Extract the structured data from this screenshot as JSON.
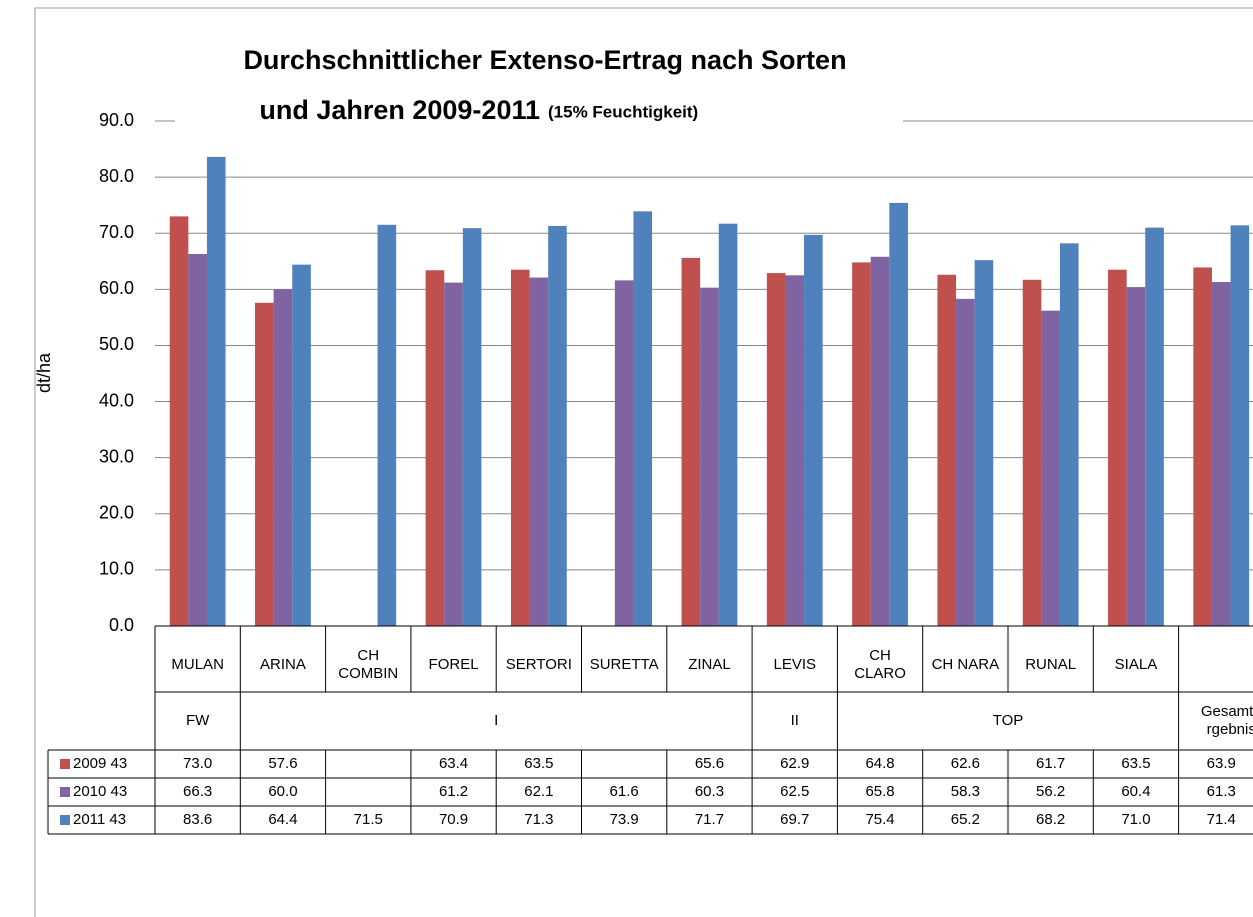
{
  "chart_data": {
    "type": "bar",
    "title": [
      "Durchschnittlicher Extenso-Ertrag nach Sorten",
      "und Jahren 2009-2011"
    ],
    "subtitle": "(15% Feuchtigkeit)",
    "y_label": "dt/ha",
    "categories": [
      "MULAN",
      "ARINA",
      "CH COMBIN",
      "FOREL",
      "SERTORI",
      "SURETTA",
      "ZINAL",
      "LEVIS",
      "CH CLARO",
      "CH NARA",
      "RUNAL",
      "SIALA",
      null
    ],
    "groups": [
      {
        "label": "FW",
        "count": 1
      },
      {
        "label": "I",
        "count": 6
      },
      {
        "label": "II",
        "count": 1
      },
      {
        "label": "TOP",
        "count": 4
      },
      {
        "label": "Gesamtergebnis",
        "count": 1
      }
    ],
    "series": [
      {
        "name": "2009 43",
        "color": "#c0504d",
        "values": [
          73.0,
          57.6,
          null,
          63.4,
          63.5,
          null,
          65.6,
          62.9,
          64.8,
          62.6,
          61.7,
          63.5,
          63.9
        ],
        "value_labels": [
          "73.0",
          "57.6",
          null,
          "63.4",
          "63.5",
          null,
          "65.6",
          "62.9",
          "64.8",
          "62.6",
          "61.7",
          "63.5",
          "63.9"
        ]
      },
      {
        "name": "2010 43",
        "color": "#8064a2",
        "values": [
          66.3,
          60.0,
          null,
          61.2,
          62.1,
          61.6,
          60.3,
          62.5,
          65.8,
          58.3,
          56.2,
          60.4,
          61.3
        ],
        "value_labels": [
          "66.3",
          "60.0",
          null,
          "61.2",
          "62.1",
          "61.6",
          "60.3",
          "62.5",
          "65.8",
          "58.3",
          "56.2",
          "60.4",
          "61.3"
        ]
      },
      {
        "name": "2011 43",
        "color": "#4f81bd",
        "values": [
          83.6,
          64.4,
          71.5,
          70.9,
          71.3,
          73.9,
          71.7,
          69.7,
          75.4,
          65.2,
          68.2,
          71.0,
          71.4
        ],
        "value_labels": [
          "83.6",
          "64.4",
          "71.5",
          "70.9",
          "71.3",
          "73.9",
          "71.7",
          "69.7",
          "75.4",
          "65.2",
          "68.2",
          "71.0",
          "71.4"
        ]
      }
    ],
    "ylim": [
      0,
      90
    ],
    "yticks": [
      {
        "value": 0,
        "label": "0.0"
      },
      {
        "value": 10,
        "label": "10.0"
      },
      {
        "value": 20,
        "label": "20.0"
      },
      {
        "value": 30,
        "label": "30.0"
      },
      {
        "value": 40,
        "label": "40.0"
      },
      {
        "value": 50,
        "label": "50.0"
      },
      {
        "value": 60,
        "label": "60.0"
      },
      {
        "value": 70,
        "label": "70.0"
      },
      {
        "value": 80,
        "label": "80.0"
      },
      {
        "value": 90,
        "label": "90.0"
      }
    ],
    "grid": true
  }
}
